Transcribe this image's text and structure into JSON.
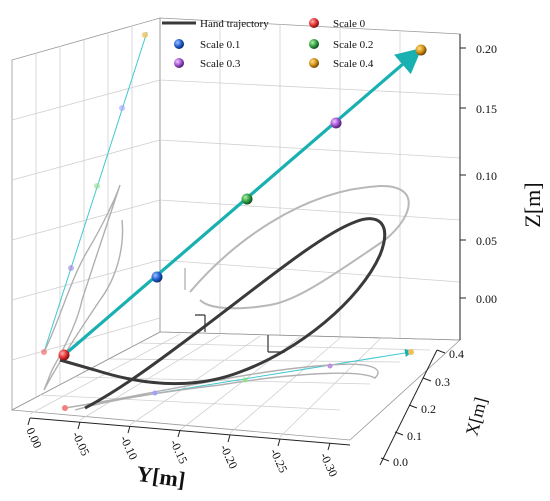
{
  "chart_data": {
    "type": "line",
    "subtype": "3d-trajectory",
    "legend_placement": "top",
    "grid": true,
    "xlabel": "X[m]",
    "ylabel": "Y[m]",
    "zlabel": "Z[m]",
    "x_ticks": [
      "0.0",
      "0.1",
      "0.2",
      "0.3",
      "0.4"
    ],
    "y_ticks": [
      "0.00",
      "-0.05",
      "-0.10",
      "-0.15",
      "-0.20",
      "-0.25",
      "-0.30"
    ],
    "z_ticks": [
      "0.00",
      "0.05",
      "0.10",
      "0.15",
      "0.20"
    ],
    "xlim": [
      0.0,
      0.4
    ],
    "ylim": [
      0.0,
      -0.3
    ],
    "zlim": [
      -0.02,
      0.21
    ],
    "series": [
      {
        "name": "Hand trajectory",
        "color": "#3a3a3a"
      }
    ],
    "scale_points": [
      {
        "name": "Scale 0",
        "color": "#e03030",
        "x": 0.0,
        "y": 0.0,
        "z": 0.0
      },
      {
        "name": "Scale 0.1",
        "color": "#2060d0",
        "x": 0.1,
        "y": -0.03,
        "z": 0.05
      },
      {
        "name": "Scale 0.2",
        "color": "#30a040",
        "x": 0.2,
        "y": -0.06,
        "z": 0.1
      },
      {
        "name": "Scale 0.3",
        "color": "#a050d0",
        "x": 0.3,
        "y": -0.09,
        "z": 0.15
      },
      {
        "name": "Scale 0.4",
        "color": "#d09010",
        "x": 0.4,
        "y": -0.12,
        "z": 0.2
      }
    ],
    "line_color": "#18b0b0"
  },
  "legend": {
    "items": [
      {
        "label": "Hand trajectory",
        "kind": "line",
        "color": "#3a3a3a"
      },
      {
        "label": "Scale 0",
        "kind": "ball",
        "color": "#e03030"
      },
      {
        "label": "Scale 0.1",
        "kind": "ball",
        "color": "#2060d0"
      },
      {
        "label": "Scale 0.2",
        "kind": "ball",
        "color": "#30a040"
      },
      {
        "label": "Scale 0.3",
        "kind": "ball",
        "color": "#a050d0"
      },
      {
        "label": "Scale 0.4",
        "kind": "ball",
        "color": "#d09010"
      }
    ]
  }
}
